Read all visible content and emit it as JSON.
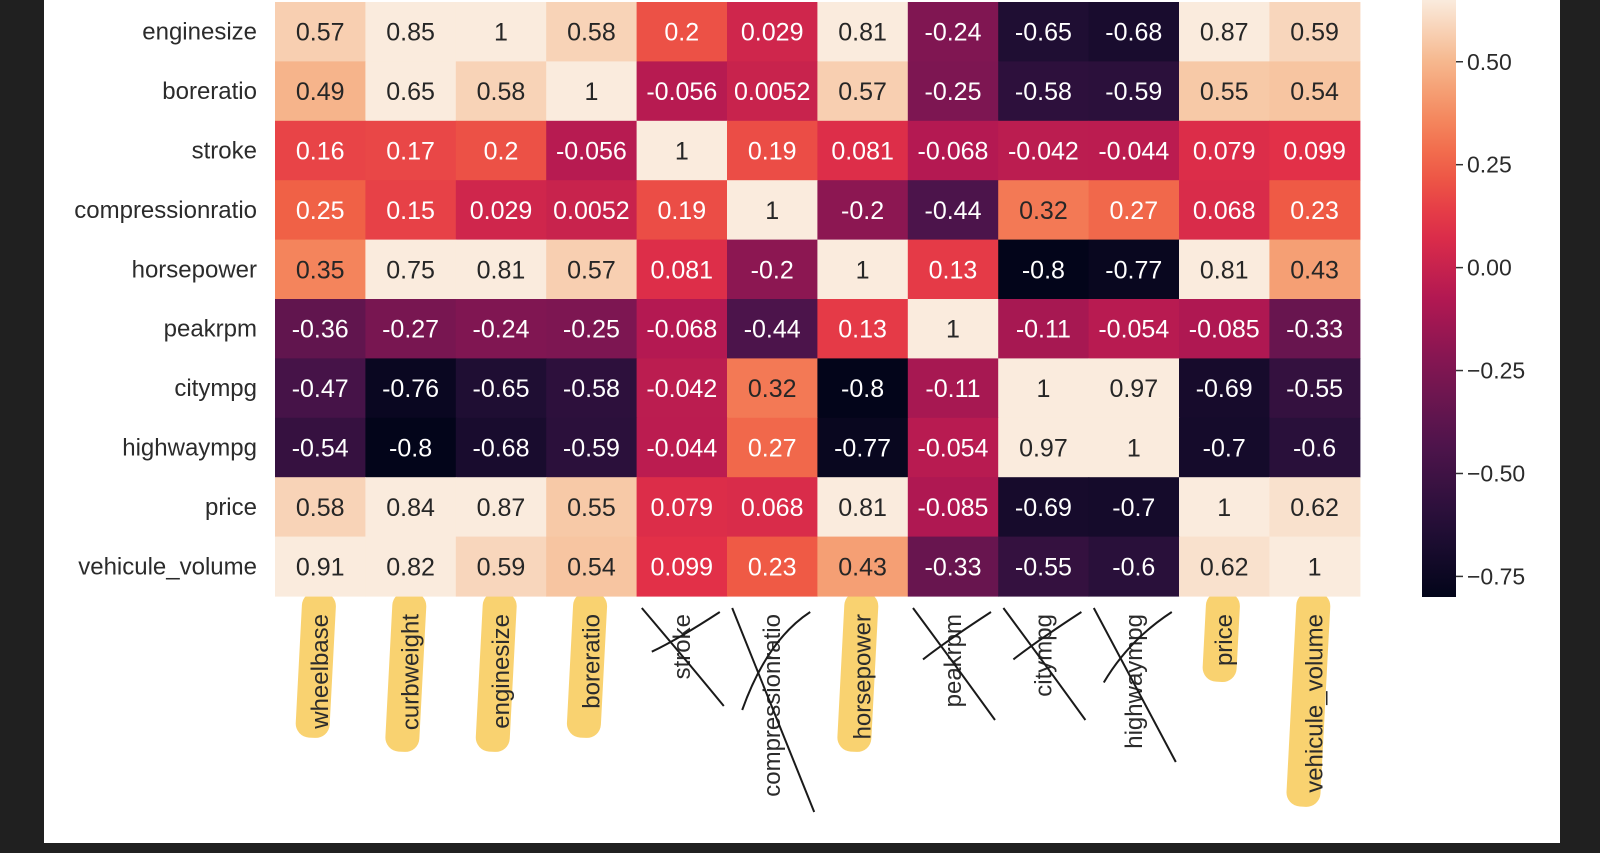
{
  "chart_data": {
    "type": "heatmap",
    "title": "",
    "xlabel": "",
    "ylabel": "",
    "row_labels": [
      "enginesize",
      "boreratio",
      "stroke",
      "compressionratio",
      "horsepower",
      "peakrpm",
      "citympg",
      "highwaympg",
      "price",
      "vehicule_volume"
    ],
    "col_labels": [
      "wheelbase",
      "curbweight",
      "enginesize",
      "boreratio",
      "stroke",
      "compressionratio",
      "horsepower",
      "peakrpm",
      "citympg",
      "highwaympg",
      "price",
      "vehicule_volume"
    ],
    "values": [
      [
        0.57,
        0.85,
        1,
        0.58,
        0.2,
        0.029,
        0.81,
        -0.24,
        -0.65,
        -0.68,
        0.87,
        0.59
      ],
      [
        0.49,
        0.65,
        0.58,
        1,
        -0.056,
        0.0052,
        0.57,
        -0.25,
        -0.58,
        -0.59,
        0.55,
        0.54
      ],
      [
        0.16,
        0.17,
        0.2,
        -0.056,
        1,
        0.19,
        0.081,
        -0.068,
        -0.042,
        -0.044,
        0.079,
        0.099
      ],
      [
        0.25,
        0.15,
        0.029,
        0.0052,
        0.19,
        1,
        -0.2,
        -0.44,
        0.32,
        0.27,
        0.068,
        0.23
      ],
      [
        0.35,
        0.75,
        0.81,
        0.57,
        0.081,
        -0.2,
        1,
        0.13,
        -0.8,
        -0.77,
        0.81,
        0.43
      ],
      [
        -0.36,
        -0.27,
        -0.24,
        -0.25,
        -0.068,
        -0.44,
        0.13,
        1,
        -0.11,
        -0.054,
        -0.085,
        -0.33
      ],
      [
        -0.47,
        -0.76,
        -0.65,
        -0.58,
        -0.042,
        0.32,
        -0.8,
        -0.11,
        1,
        0.97,
        -0.69,
        -0.55
      ],
      [
        -0.54,
        -0.8,
        -0.68,
        -0.59,
        -0.044,
        0.27,
        -0.77,
        -0.054,
        0.97,
        1,
        -0.7,
        -0.6
      ],
      [
        0.58,
        0.84,
        0.87,
        0.55,
        0.079,
        0.068,
        0.81,
        -0.085,
        -0.69,
        -0.7,
        1,
        0.62
      ],
      [
        0.91,
        0.82,
        0.59,
        0.54,
        0.099,
        0.23,
        0.43,
        -0.33,
        -0.55,
        -0.6,
        0.62,
        1
      ]
    ],
    "value_labels": [
      [
        "0.57",
        "0.85",
        "1",
        "0.58",
        "0.2",
        "0.029",
        "0.81",
        "-0.24",
        "-0.65",
        "-0.68",
        "0.87",
        "0.59"
      ],
      [
        "0.49",
        "0.65",
        "0.58",
        "1",
        "-0.056",
        "0.0052",
        "0.57",
        "-0.25",
        "-0.58",
        "-0.59",
        "0.55",
        "0.54"
      ],
      [
        "0.16",
        "0.17",
        "0.2",
        "-0.056",
        "1",
        "0.19",
        "0.081",
        "-0.068",
        "-0.042",
        "-0.044",
        "0.079",
        "0.099"
      ],
      [
        "0.25",
        "0.15",
        "0.029",
        "0.0052",
        "0.19",
        "1",
        "-0.2",
        "-0.44",
        "0.32",
        "0.27",
        "0.068",
        "0.23"
      ],
      [
        "0.35",
        "0.75",
        "0.81",
        "0.57",
        "0.081",
        "-0.2",
        "1",
        "0.13",
        "-0.8",
        "-0.77",
        "0.81",
        "0.43"
      ],
      [
        "-0.36",
        "-0.27",
        "-0.24",
        "-0.25",
        "-0.068",
        "-0.44",
        "0.13",
        "1",
        "-0.11",
        "-0.054",
        "-0.085",
        "-0.33"
      ],
      [
        "-0.47",
        "-0.76",
        "-0.65",
        "-0.58",
        "-0.042",
        "0.32",
        "-0.8",
        "-0.11",
        "1",
        "0.97",
        "-0.69",
        "-0.55"
      ],
      [
        "-0.54",
        "-0.8",
        "-0.68",
        "-0.59",
        "-0.044",
        "0.27",
        "-0.77",
        "-0.054",
        "0.97",
        "1",
        "-0.7",
        "-0.6"
      ],
      [
        "0.58",
        "0.84",
        "0.87",
        "0.55",
        "0.079",
        "0.068",
        "0.81",
        "-0.085",
        "-0.69",
        "-0.7",
        "1",
        "0.62"
      ],
      [
        "0.91",
        "0.82",
        "0.59",
        "0.54",
        "0.099",
        "0.23",
        "0.43",
        "-0.33",
        "-0.55",
        "-0.6",
        "0.62",
        "1"
      ]
    ],
    "colorbar": {
      "ticks": [
        0.5,
        0.25,
        0.0,
        -0.25,
        -0.5,
        -0.75
      ],
      "tick_labels": [
        "0.50",
        "0.25",
        "0.00",
        "−0.25",
        "−0.50",
        "−0.75"
      ],
      "range": [
        -0.8,
        0.65
      ],
      "colormap": "rocket",
      "position": "right"
    },
    "annotations": {
      "highlighted_columns": [
        "wheelbase",
        "curbweight",
        "enginesize",
        "boreratio",
        "horsepower",
        "price",
        "vehicule_volume"
      ],
      "crossed_out_columns": [
        "stroke",
        "compressionratio",
        "peakrpm",
        "citympg",
        "highwaympg"
      ],
      "highlight_color": "#f7c548",
      "cross_color": "#1a1a1a"
    }
  }
}
